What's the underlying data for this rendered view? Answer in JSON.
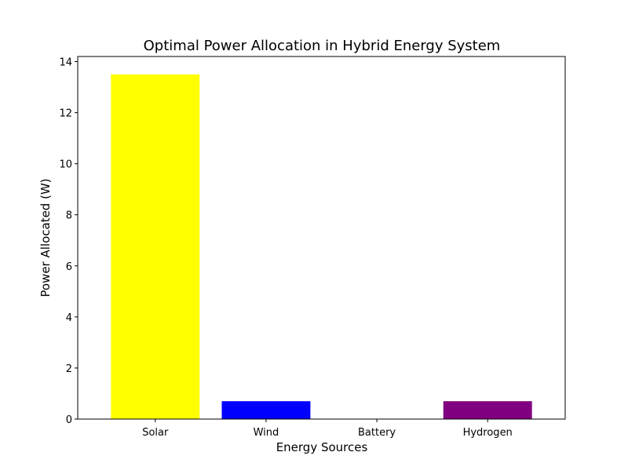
{
  "chart_data": {
    "type": "bar",
    "title": "Optimal Power Allocation in Hybrid Energy System",
    "xlabel": "Energy Sources",
    "ylabel": "Power Allocated (W)",
    "categories": [
      "Solar",
      "Wind",
      "Battery",
      "Hydrogen"
    ],
    "values": [
      13.5,
      0.7,
      0,
      0.7
    ],
    "colors": [
      "#ffff00",
      "#0000ff",
      "#ffa500",
      "#800080"
    ],
    "ylim": [
      0,
      14.2
    ],
    "yticks": [
      0,
      2,
      4,
      6,
      8,
      10,
      12,
      14
    ],
    "grid": false,
    "legend": "none"
  }
}
